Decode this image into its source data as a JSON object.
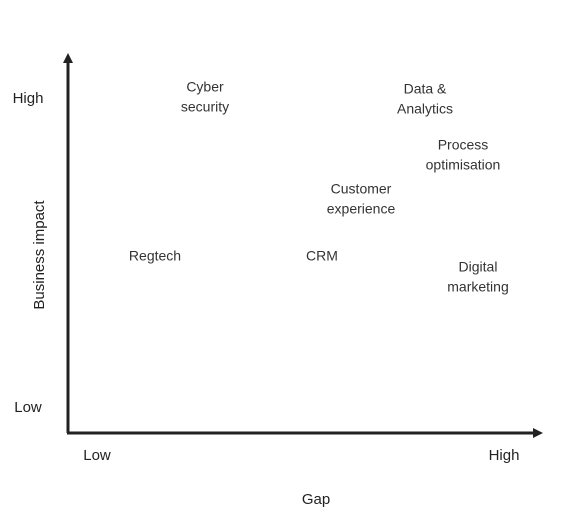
{
  "y_axis": {
    "title": "Business impact",
    "high": "High",
    "low": "Low"
  },
  "x_axis": {
    "title": "Gap",
    "low": "Low",
    "high": "High"
  },
  "items": [
    {
      "lines": [
        "Cyber",
        "security"
      ]
    },
    {
      "lines": [
        "Data &",
        "Analytics"
      ]
    },
    {
      "lines": [
        "Process",
        "optimisation"
      ]
    },
    {
      "lines": [
        "Customer",
        "experience"
      ]
    },
    {
      "lines": [
        "Regtech"
      ]
    },
    {
      "lines": [
        "CRM"
      ]
    },
    {
      "lines": [
        "Digital",
        "marketing"
      ]
    }
  ]
}
